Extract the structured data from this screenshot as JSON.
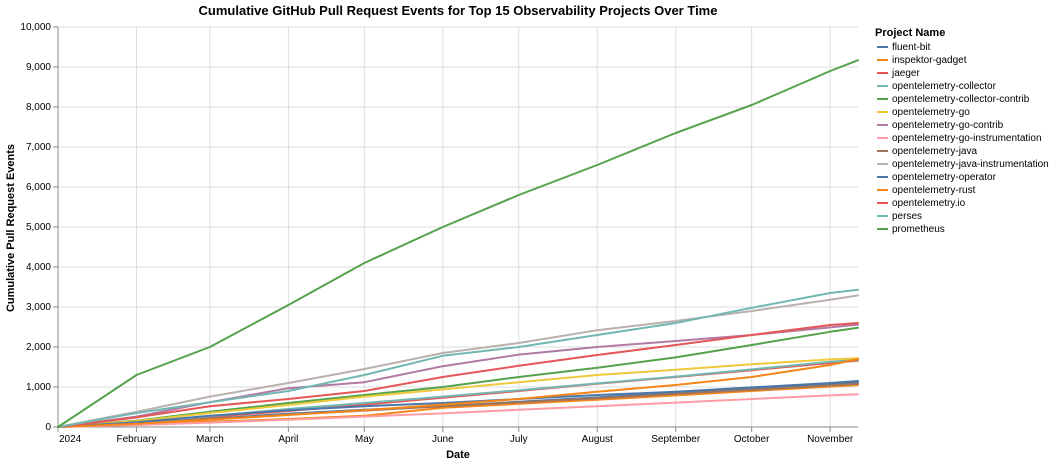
{
  "chart_data": {
    "type": "line",
    "title": "Cumulative GitHub Pull Request Events for Top 15 Observability Projects Over Time",
    "xlabel": "Date",
    "ylabel": "Cumulative Pull Request Events",
    "ylim": [
      0,
      10000
    ],
    "xlim": [
      "2024-01-01",
      "2024-11-12"
    ],
    "grid": true,
    "legend_title": "Project Name",
    "legend_position": "right",
    "x_ticks": [
      {
        "date": "2024-01-01",
        "label": "2024"
      },
      {
        "date": "2024-02-01",
        "label": "February"
      },
      {
        "date": "2024-03-01",
        "label": "March"
      },
      {
        "date": "2024-04-01",
        "label": "April"
      },
      {
        "date": "2024-05-01",
        "label": "May"
      },
      {
        "date": "2024-06-01",
        "label": "June"
      },
      {
        "date": "2024-07-01",
        "label": "July"
      },
      {
        "date": "2024-08-01",
        "label": "August"
      },
      {
        "date": "2024-09-01",
        "label": "September"
      },
      {
        "date": "2024-10-01",
        "label": "October"
      },
      {
        "date": "2024-11-01",
        "label": "November"
      }
    ],
    "y_ticks": [
      {
        "value": 0,
        "label": "0"
      },
      {
        "value": 1000,
        "label": "1,000"
      },
      {
        "value": 2000,
        "label": "2,000"
      },
      {
        "value": 3000,
        "label": "3,000"
      },
      {
        "value": 4000,
        "label": "4,000"
      },
      {
        "value": 5000,
        "label": "5,000"
      },
      {
        "value": 6000,
        "label": "6,000"
      },
      {
        "value": 7000,
        "label": "7,000"
      },
      {
        "value": 8000,
        "label": "8,000"
      },
      {
        "value": 9000,
        "label": "9,000"
      },
      {
        "value": 10000,
        "label": "10,000"
      }
    ],
    "x": [
      "2024-01-01",
      "2024-02-01",
      "2024-03-01",
      "2024-04-01",
      "2024-05-01",
      "2024-06-01",
      "2024-07-01",
      "2024-08-01",
      "2024-09-01",
      "2024-10-01",
      "2024-11-01",
      "2024-11-12"
    ],
    "series": [
      {
        "name": "fluent-bit",
        "color": "#4c78a8",
        "values": [
          0,
          100,
          210,
          330,
          430,
          520,
          630,
          740,
          860,
          970,
          1080,
          1120
        ]
      },
      {
        "name": "inspektor-gadget",
        "color": "#f58518",
        "values": [
          0,
          70,
          130,
          200,
          280,
          480,
          580,
          680,
          790,
          900,
          1010,
          1050
        ]
      },
      {
        "name": "jaeger",
        "color": "#e45756",
        "values": [
          0,
          100,
          250,
          400,
          560,
          730,
          900,
          1080,
          1250,
          1420,
          1600,
          1660
        ]
      },
      {
        "name": "opentelemetry-collector",
        "color": "#72b7b2",
        "values": [
          0,
          110,
          270,
          450,
          600,
          760,
          920,
          1090,
          1260,
          1440,
          1630,
          1680
        ]
      },
      {
        "name": "opentelemetry-collector-contrib",
        "color": "#54a24b",
        "values": [
          0,
          160,
          380,
          600,
          800,
          1000,
          1250,
          1480,
          1740,
          2050,
          2380,
          2480
        ]
      },
      {
        "name": "opentelemetry-go",
        "color": "#eeca3b",
        "values": [
          0,
          150,
          350,
          550,
          760,
          940,
          1120,
          1300,
          1430,
          1570,
          1690,
          1720
        ]
      },
      {
        "name": "opentelemetry-go-contrib",
        "color": "#b279a2",
        "values": [
          0,
          260,
          620,
          970,
          1120,
          1520,
          1810,
          2000,
          2150,
          2300,
          2490,
          2560
        ]
      },
      {
        "name": "opentelemetry-go-instrumentation",
        "color": "#ff9da6",
        "values": [
          0,
          50,
          110,
          180,
          260,
          340,
          430,
          520,
          610,
          700,
          790,
          820
        ]
      },
      {
        "name": "opentelemetry-java",
        "color": "#9d755d",
        "values": [
          0,
          90,
          200,
          310,
          410,
          520,
          620,
          720,
          830,
          930,
          1040,
          1080
        ]
      },
      {
        "name": "opentelemetry-java-instrumentation",
        "color": "#bab0ac",
        "values": [
          0,
          380,
          760,
          1100,
          1450,
          1850,
          2100,
          2420,
          2650,
          2900,
          3180,
          3290
        ]
      },
      {
        "name": "opentelemetry-operator",
        "color": "#4c78a8",
        "values": [
          0,
          120,
          280,
          420,
          520,
          600,
          700,
          800,
          880,
          990,
          1100,
          1150
        ]
      },
      {
        "name": "opentelemetry-rust",
        "color": "#f58518",
        "values": [
          0,
          80,
          180,
          300,
          420,
          560,
          700,
          880,
          1050,
          1250,
          1550,
          1700
        ]
      },
      {
        "name": "opentelemetry.io",
        "color": "#e45756",
        "values": [
          0,
          240,
          520,
          700,
          900,
          1250,
          1530,
          1800,
          2050,
          2300,
          2550,
          2600
        ]
      },
      {
        "name": "perses",
        "color": "#72b7b2",
        "values": [
          0,
          350,
          620,
          900,
          1300,
          1780,
          2000,
          2300,
          2600,
          2980,
          3350,
          3430
        ]
      },
      {
        "name": "prometheus",
        "color": "#54a24b",
        "values": [
          0,
          1300,
          2000,
          3050,
          4100,
          5000,
          5800,
          6550,
          7350,
          8050,
          8900,
          9170
        ]
      }
    ]
  }
}
